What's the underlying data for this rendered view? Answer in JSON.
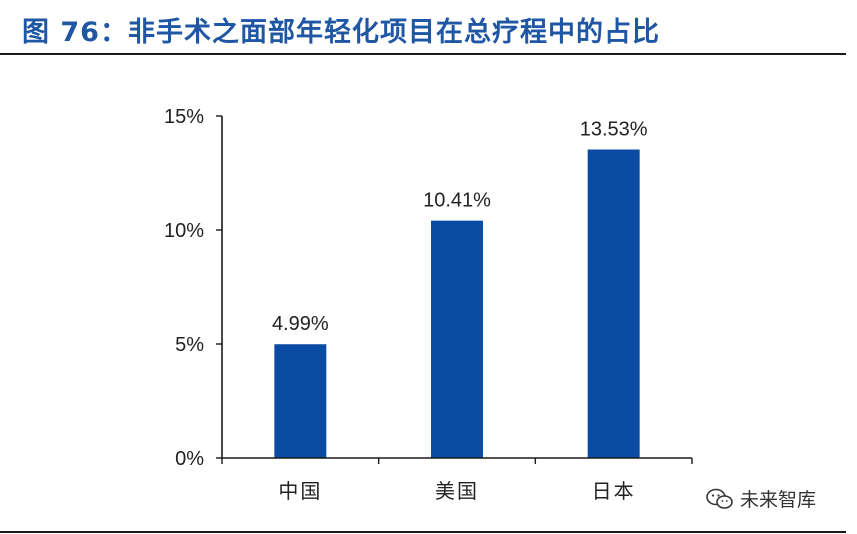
{
  "title": "图 76：非手术之面部年轻化项目在总疗程中的占比",
  "watermark": {
    "text": "未来智库",
    "icon": "wechat-icon"
  },
  "colors": {
    "bar": "#0a4ba3",
    "title": "#1f57a5",
    "axis": "#1a1a1a"
  },
  "chart_data": {
    "type": "bar",
    "categories": [
      "中国",
      "美国",
      "日本"
    ],
    "values": [
      4.99,
      10.41,
      13.53
    ],
    "data_labels": [
      "4.99%",
      "10.41%",
      "13.53%"
    ],
    "yticks": [
      0,
      5,
      10,
      15
    ],
    "ytick_labels": [
      "0%",
      "5%",
      "10%",
      "15%"
    ],
    "ylim": [
      0,
      15
    ],
    "unit": "%",
    "title": "",
    "xlabel": "",
    "ylabel": "",
    "grid": false,
    "legend": "none"
  }
}
